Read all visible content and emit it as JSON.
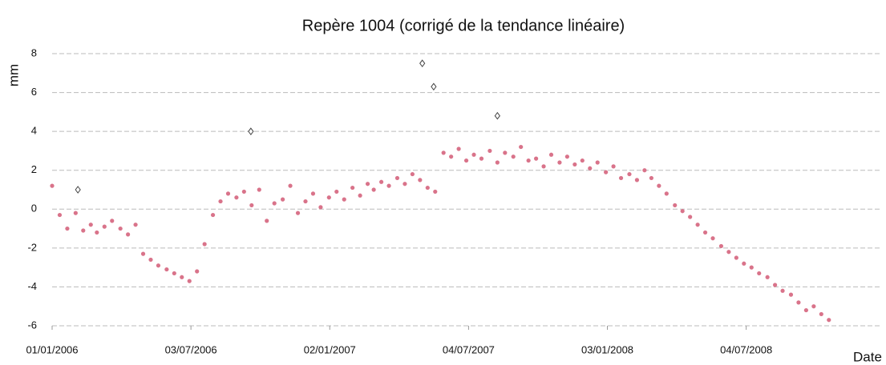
{
  "chart_data": {
    "type": "scatter",
    "title": "Repère 1004 (corrigé de la tendance linéaire)",
    "y_label": "mm",
    "x_label": "Date",
    "xlim": [
      "2006-01-01",
      "2008-12-30"
    ],
    "xticks": [
      {
        "value": "2006-01-01",
        "label": "01/01/2006"
      },
      {
        "value": "2006-07-03",
        "label": "03/07/2006"
      },
      {
        "value": "2007-01-02",
        "label": "02/01/2007"
      },
      {
        "value": "2007-07-04",
        "label": "04/07/2007"
      },
      {
        "value": "2008-01-03",
        "label": "03/01/2008"
      },
      {
        "value": "2008-07-04",
        "label": "04/07/2008"
      }
    ],
    "ylim": [
      -6,
      8
    ],
    "yticks": [
      -6,
      -4,
      -2,
      0,
      2,
      4,
      6,
      8
    ],
    "grid": true,
    "series": [
      {
        "color": "#d9738a",
        "marker": "dot",
        "x": [
          "2006-01-01",
          "2006-01-11",
          "2006-01-21",
          "2006-02-01",
          "2006-02-11",
          "2006-02-21",
          "2006-03-01",
          "2006-03-11",
          "2006-03-21",
          "2006-04-01",
          "2006-04-11",
          "2006-04-21",
          "2006-05-01",
          "2006-05-11",
          "2006-05-21",
          "2006-06-01",
          "2006-06-11",
          "2006-06-21",
          "2006-07-01",
          "2006-07-11",
          "2006-07-21",
          "2006-08-01",
          "2006-08-11",
          "2006-08-21",
          "2006-09-01",
          "2006-09-11",
          "2006-09-21",
          "2006-10-01",
          "2006-10-11",
          "2006-10-21",
          "2006-11-01",
          "2006-11-11",
          "2006-11-21",
          "2006-12-01",
          "2006-12-11",
          "2006-12-21",
          "2007-01-01",
          "2007-01-11",
          "2007-01-21",
          "2007-02-01",
          "2007-02-11",
          "2007-02-21",
          "2007-03-01",
          "2007-03-11",
          "2007-03-21",
          "2007-04-01",
          "2007-04-11",
          "2007-04-21",
          "2007-05-01",
          "2007-05-11",
          "2007-05-21",
          "2007-06-01",
          "2007-06-11",
          "2007-06-21",
          "2007-07-01",
          "2007-07-11",
          "2007-07-21",
          "2007-08-01",
          "2007-08-11",
          "2007-08-21",
          "2007-09-01",
          "2007-09-11",
          "2007-09-21",
          "2007-10-01",
          "2007-10-11",
          "2007-10-21",
          "2007-11-01",
          "2007-11-11",
          "2007-11-21",
          "2007-12-01",
          "2007-12-11",
          "2007-12-21",
          "2008-01-01",
          "2008-01-11",
          "2008-01-21",
          "2008-02-01",
          "2008-02-11",
          "2008-02-21",
          "2008-03-01",
          "2008-03-11",
          "2008-03-21",
          "2008-04-01",
          "2008-04-11",
          "2008-04-21",
          "2008-05-01",
          "2008-05-11",
          "2008-05-21",
          "2008-06-01",
          "2008-06-11",
          "2008-06-21",
          "2008-07-01",
          "2008-07-11",
          "2008-07-21",
          "2008-08-01",
          "2008-08-11",
          "2008-08-21",
          "2008-09-01",
          "2008-09-11",
          "2008-09-21",
          "2008-10-01",
          "2008-10-11",
          "2008-10-21"
        ],
        "values": [
          1.2,
          -0.3,
          -1.0,
          -0.2,
          -1.1,
          -0.8,
          -1.2,
          -0.9,
          -0.6,
          -1.0,
          -1.3,
          -0.8,
          -2.3,
          -2.6,
          -2.9,
          -3.1,
          -3.3,
          -3.5,
          -3.7,
          -3.2,
          -1.8,
          -0.3,
          0.4,
          0.8,
          0.6,
          0.9,
          0.2,
          1.0,
          -0.6,
          0.3,
          0.5,
          1.2,
          -0.2,
          0.4,
          0.8,
          0.1,
          0.6,
          0.9,
          0.5,
          1.1,
          0.7,
          1.3,
          1.0,
          1.4,
          1.2,
          1.6,
          1.3,
          1.8,
          1.5,
          1.1,
          0.9,
          2.9,
          2.7,
          3.1,
          2.5,
          2.8,
          2.6,
          3.0,
          2.4,
          2.9,
          2.7,
          3.2,
          2.5,
          2.6,
          2.2,
          2.8,
          2.4,
          2.7,
          2.3,
          2.5,
          2.1,
          2.4,
          1.9,
          2.2,
          1.6,
          1.8,
          1.5,
          2.0,
          1.6,
          1.2,
          0.8,
          0.2,
          -0.1,
          -0.4,
          -0.8,
          -1.2,
          -1.5,
          -1.9,
          -2.2,
          -2.5,
          -2.8,
          -3.0,
          -3.3,
          -3.5,
          -3.9,
          -4.2,
          -4.4,
          -4.8,
          -5.2,
          -5.0,
          -5.4,
          -5.7
        ]
      },
      {
        "color": "#444444",
        "marker": "diamond",
        "x": [
          "2006-02-04",
          "2006-09-20",
          "2007-05-04",
          "2007-05-19",
          "2007-08-11"
        ],
        "values": [
          1.0,
          4.0,
          7.5,
          6.3,
          4.8
        ]
      }
    ]
  }
}
